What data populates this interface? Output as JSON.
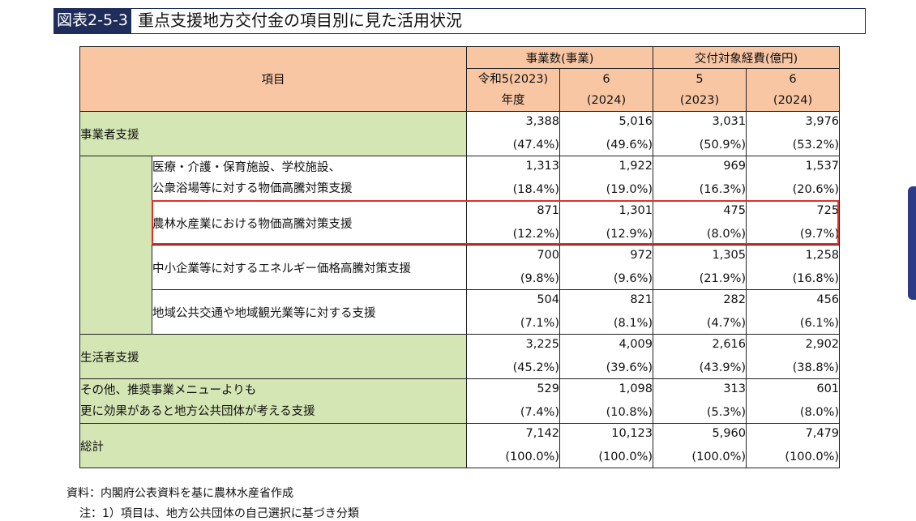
{
  "title": {
    "label": "図表2-5-3",
    "text": "重点支援地方交付金の項目別に見た活用状況"
  },
  "header": {
    "item_label": "項目",
    "group_projects": "事業数(事業)",
    "group_expenses": "交付対象経費(億円)",
    "col1_line1": "令和5(2023)",
    "col1_line2": "年度",
    "col2_line1": "6",
    "col2_line2": "(2024)",
    "col3_line1": "5",
    "col3_line2": "(2023)",
    "col4_line1": "6",
    "col4_line2": "(2024)"
  },
  "rows": [
    {
      "label": [
        "事業者支援"
      ],
      "values": [
        "3,388",
        "5,016",
        "3,031",
        "3,976"
      ],
      "shares": [
        "(47.4%)",
        "(49.6%)",
        "(50.9%)",
        "(53.2%)"
      ]
    },
    {
      "label": [
        "医療・介護・保育施設、学校施設、",
        "公衆浴場等に対する物価高騰対策支援"
      ],
      "values": [
        "1,313",
        "1,922",
        "969",
        "1,537"
      ],
      "shares": [
        "(18.4%)",
        "(19.0%)",
        "(16.3%)",
        "(20.6%)"
      ]
    },
    {
      "label": [
        "農林水産業における物価高騰対策支援"
      ],
      "values": [
        "871",
        "1,301",
        "475",
        "725"
      ],
      "shares": [
        "(12.2%)",
        "(12.9%)",
        "(8.0%)",
        "(9.7%)"
      ]
    },
    {
      "label": [
        "中小企業等に対するエネルギー価格高騰対策支援"
      ],
      "values": [
        "700",
        "972",
        "1,305",
        "1,258"
      ],
      "shares": [
        "(9.8%)",
        "(9.6%)",
        "(21.9%)",
        "(16.8%)"
      ]
    },
    {
      "label": [
        "地域公共交通や地域観光業等に対する支援"
      ],
      "values": [
        "504",
        "821",
        "282",
        "456"
      ],
      "shares": [
        "(7.1%)",
        "(8.1%)",
        "(4.7%)",
        "(6.1%)"
      ]
    },
    {
      "label": [
        "生活者支援"
      ],
      "values": [
        "3,225",
        "4,009",
        "2,616",
        "2,902"
      ],
      "shares": [
        "(45.2%)",
        "(39.6%)",
        "(43.9%)",
        "(38.8%)"
      ]
    },
    {
      "label": [
        "その他、推奨事業メニューよりも",
        "更に効果があると地方公共団体が考える支援"
      ],
      "values": [
        "529",
        "1,098",
        "313",
        "601"
      ],
      "shares": [
        "(7.4%)",
        "(10.8%)",
        "(5.3%)",
        "(8.0%)"
      ]
    },
    {
      "label": [
        "総計"
      ],
      "values": [
        "7,142",
        "10,123",
        "5,960",
        "7,479"
      ],
      "shares": [
        "(100.0%)",
        "(100.0%)",
        "(100.0%)",
        "(100.0%)"
      ]
    }
  ],
  "notes": {
    "source": "資料：内閣府公表資料を基に農林水産省作成",
    "note1": "注：1）項目は、地方公共団体の自己選択に基づき分類"
  },
  "colors": {
    "header_bg": "#f9c6a3",
    "item_bg": "#d3e6b4",
    "highlight": "#e0302b",
    "title_label_bg": "#1f2d5a"
  }
}
